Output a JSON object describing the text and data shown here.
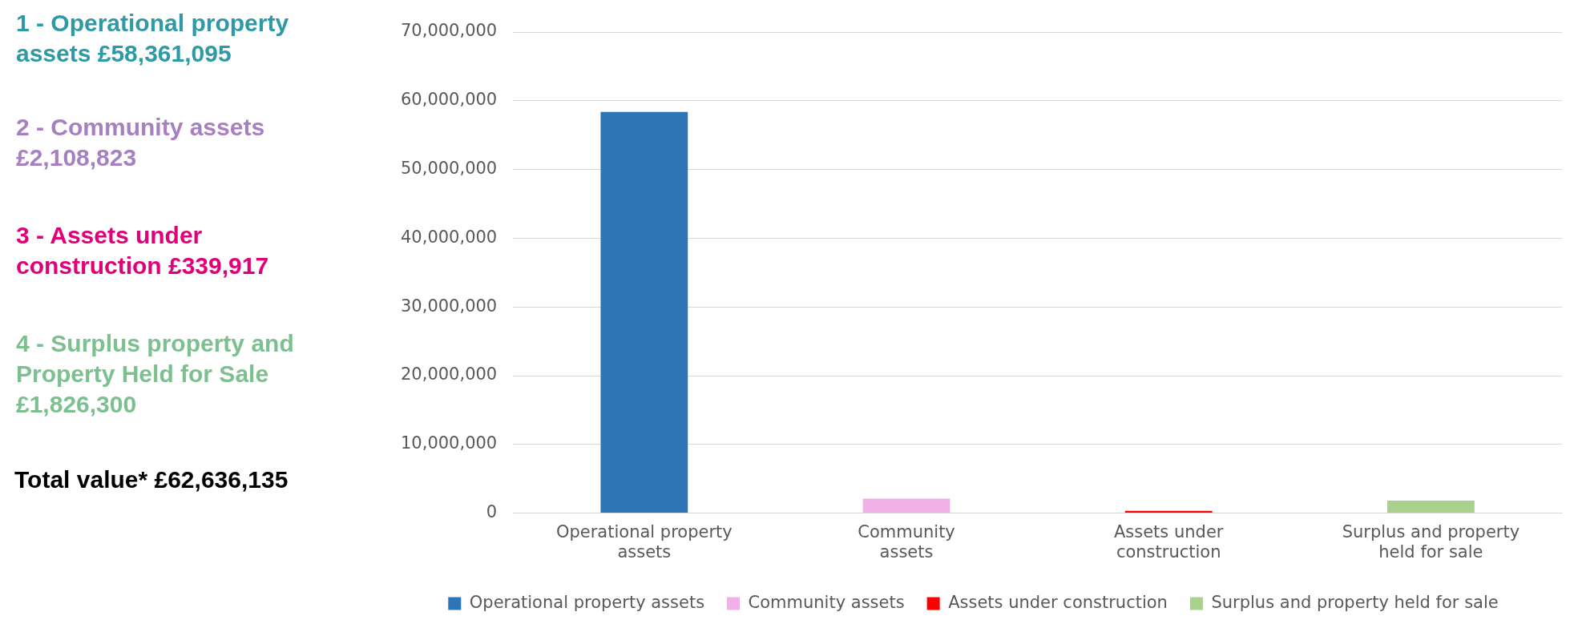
{
  "chart_data": {
    "type": "bar",
    "categories": [
      "Operational property assets",
      "Community assets",
      "Assets under construction",
      "Surplus and property held for sale"
    ],
    "series": [
      {
        "name": "Operational property assets",
        "color": "#2e75b6",
        "values": [
          58361095,
          null,
          null,
          null
        ]
      },
      {
        "name": "Community assets",
        "color": "#f0b0e8",
        "values": [
          null,
          2108823,
          null,
          null
        ]
      },
      {
        "name": "Assets under construction",
        "color": "#ff0000",
        "values": [
          null,
          null,
          339917,
          null
        ]
      },
      {
        "name": "Surplus and property held for sale",
        "color": "#a9d18e",
        "values": [
          null,
          null,
          null,
          1826300
        ]
      }
    ],
    "ylim": [
      0,
      70000000
    ],
    "yticks": [
      0,
      {
        "value": 10000000,
        "label": "10,000,000"
      },
      {
        "value": 20000000,
        "label": "20,000,000"
      },
      {
        "value": 30000000,
        "label": "30,000,000"
      },
      {
        "value": 40000000,
        "label": "40,000,000"
      },
      {
        "value": 50000000,
        "label": "50,000,000"
      },
      {
        "value": 60000000,
        "label": "60,000,000"
      },
      {
        "value": 70000000,
        "label": "70,000,000"
      }
    ],
    "grid": "y",
    "legend": "bottom",
    "annotations": [
      "1 - Operational property assets £58,361,095",
      "2 - Community assets £2,108,823",
      "3 - Assets under construction £339,917",
      "4 - Surplus property and Property Held for Sale £1,826,300",
      "Total value* £62,636,135"
    ]
  }
}
